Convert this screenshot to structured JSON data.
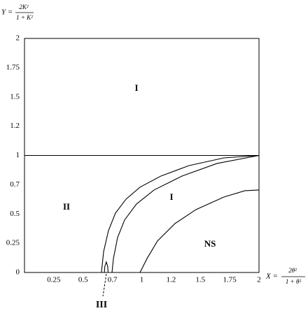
{
  "chart_data": {
    "type": "line",
    "y_label": {
      "lhs": "Y =",
      "numerator": "2K²",
      "denominator": "1 + K²"
    },
    "x_label": {
      "lhs": "X =",
      "numerator": "2θ²",
      "denominator": "1 + θ²"
    },
    "xlim": [
      0,
      2
    ],
    "ylim": [
      0,
      2
    ],
    "xticks": [
      0.25,
      0.5,
      0.7,
      1,
      1.2,
      1.5,
      1.75,
      2
    ],
    "yticks": [
      0,
      0.25,
      0.5,
      0.7,
      1,
      1.2,
      1.5,
      1.75,
      2
    ],
    "series": [
      {
        "color": "#000000",
        "x": [
          0,
          2
        ],
        "y": [
          1,
          1
        ]
      },
      {
        "color": "#000000",
        "x": [
          0.625,
          0.64,
          0.673,
          0.731,
          0.839,
          0.982,
          1.131,
          1.384,
          1.701,
          2
        ],
        "y": [
          0,
          0.179,
          0.358,
          0.506,
          0.601,
          0.683,
          0.789,
          0.896,
          0.975,
          1
        ]
      },
      {
        "color": "#000000",
        "x": [
          0.697,
          0.71,
          0.753,
          0.824,
          0.946,
          1.084,
          1.312,
          1.642,
          2
        ],
        "y": [
          0,
          0.119,
          0.299,
          0.448,
          0.568,
          0.664,
          0.789,
          0.918,
          1
        ]
      },
      {
        "color": "#000000",
        "x": [
          0.982,
          1.036,
          1.107,
          1.24,
          1.455,
          1.701,
          1.88,
          2
        ],
        "y": [
          0,
          0.119,
          0.269,
          0.418,
          0.53,
          0.616,
          0.659,
          0.664
        ]
      },
      {
        "color": "#000000",
        "x": [
          0.645,
          0.648,
          0.658,
          0.668,
          0.67
        ],
        "y": [
          0,
          0.05,
          0.09,
          0.05,
          0
        ]
      }
    ],
    "annotations": [
      "I",
      "I",
      "II",
      "NS",
      "III"
    ]
  }
}
